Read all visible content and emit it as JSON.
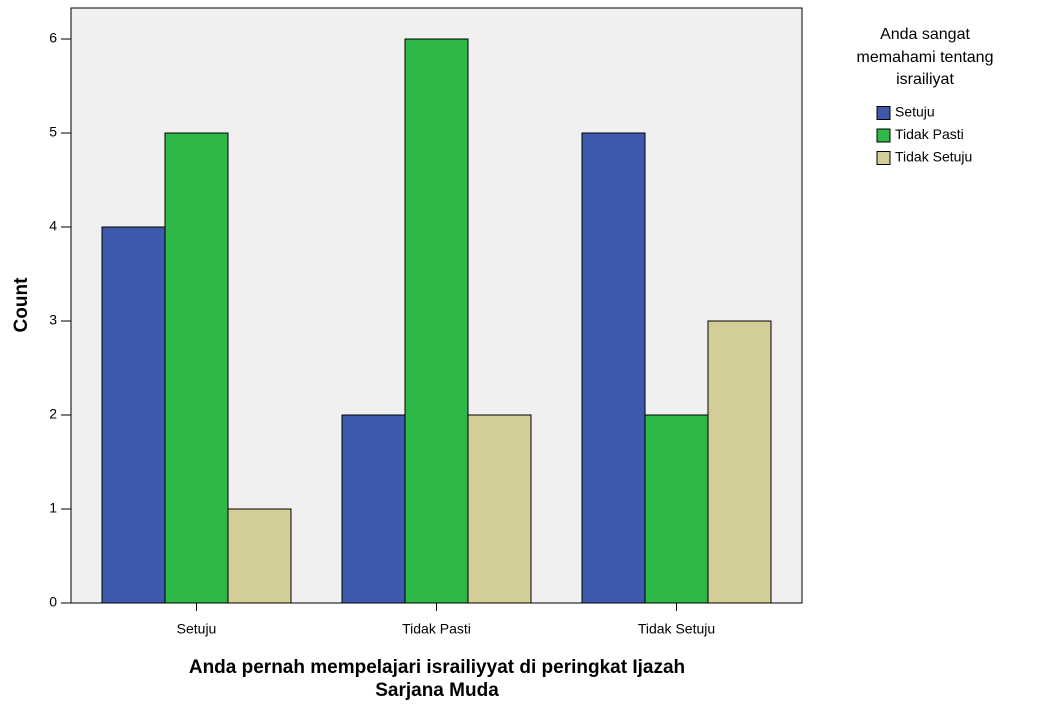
{
  "chart_data": {
    "type": "bar",
    "ylabel": "Count",
    "xlabel": [
      "Anda pernah mempelajari israiliyyat di peringkat Ijazah",
      "Sarjana Muda"
    ],
    "legend_title": [
      "Anda sangat",
      "memahami tentang",
      "israiliyat"
    ],
    "categories": [
      "Setuju",
      "Tidak Pasti",
      "Tidak Setuju"
    ],
    "series": [
      {
        "name": "Setuju",
        "color": "#3d59ab",
        "values": [
          4,
          2,
          5
        ]
      },
      {
        "name": "Tidak Pasti",
        "color": "#2eb848",
        "values": [
          5,
          6,
          2
        ]
      },
      {
        "name": "Tidak Setuju",
        "color": "#d3ce97",
        "values": [
          1,
          2,
          3
        ]
      }
    ],
    "ylim": [
      0,
      6.33
    ],
    "yticks": [
      0,
      1,
      2,
      3,
      4,
      5,
      6
    ],
    "grid": false,
    "legend": "right"
  }
}
